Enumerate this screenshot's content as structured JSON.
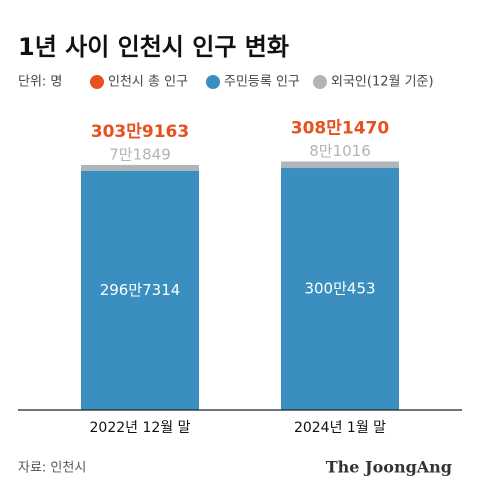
{
  "chart_data": {
    "type": "stacked-bar",
    "title": "1년 사이 인천시 인구 변화",
    "unit": "단위: 명",
    "categories": [
      "2022년 12월 말",
      "2024년 1월 말"
    ],
    "total": {
      "name": "인천시 총 인구",
      "color": "#e8501e",
      "values": [
        3039163,
        3081470
      ],
      "value_labels": [
        "303만9163",
        "308만1470"
      ]
    },
    "series": [
      {
        "name": "주민등록 인구",
        "color": "#3a8fc0",
        "values": [
          2967314,
          3000453
        ],
        "value_labels": [
          "296만7314",
          "300만453"
        ]
      },
      {
        "name": "외국인(12월 기준)",
        "color": "#b0b5b9",
        "values": [
          71849,
          81016
        ],
        "value_labels": [
          "7만1849",
          "8만1016"
        ]
      }
    ],
    "ylim": [
      0,
      3100000
    ],
    "source": "자료: 인천시",
    "brand": "The JoongAng"
  }
}
